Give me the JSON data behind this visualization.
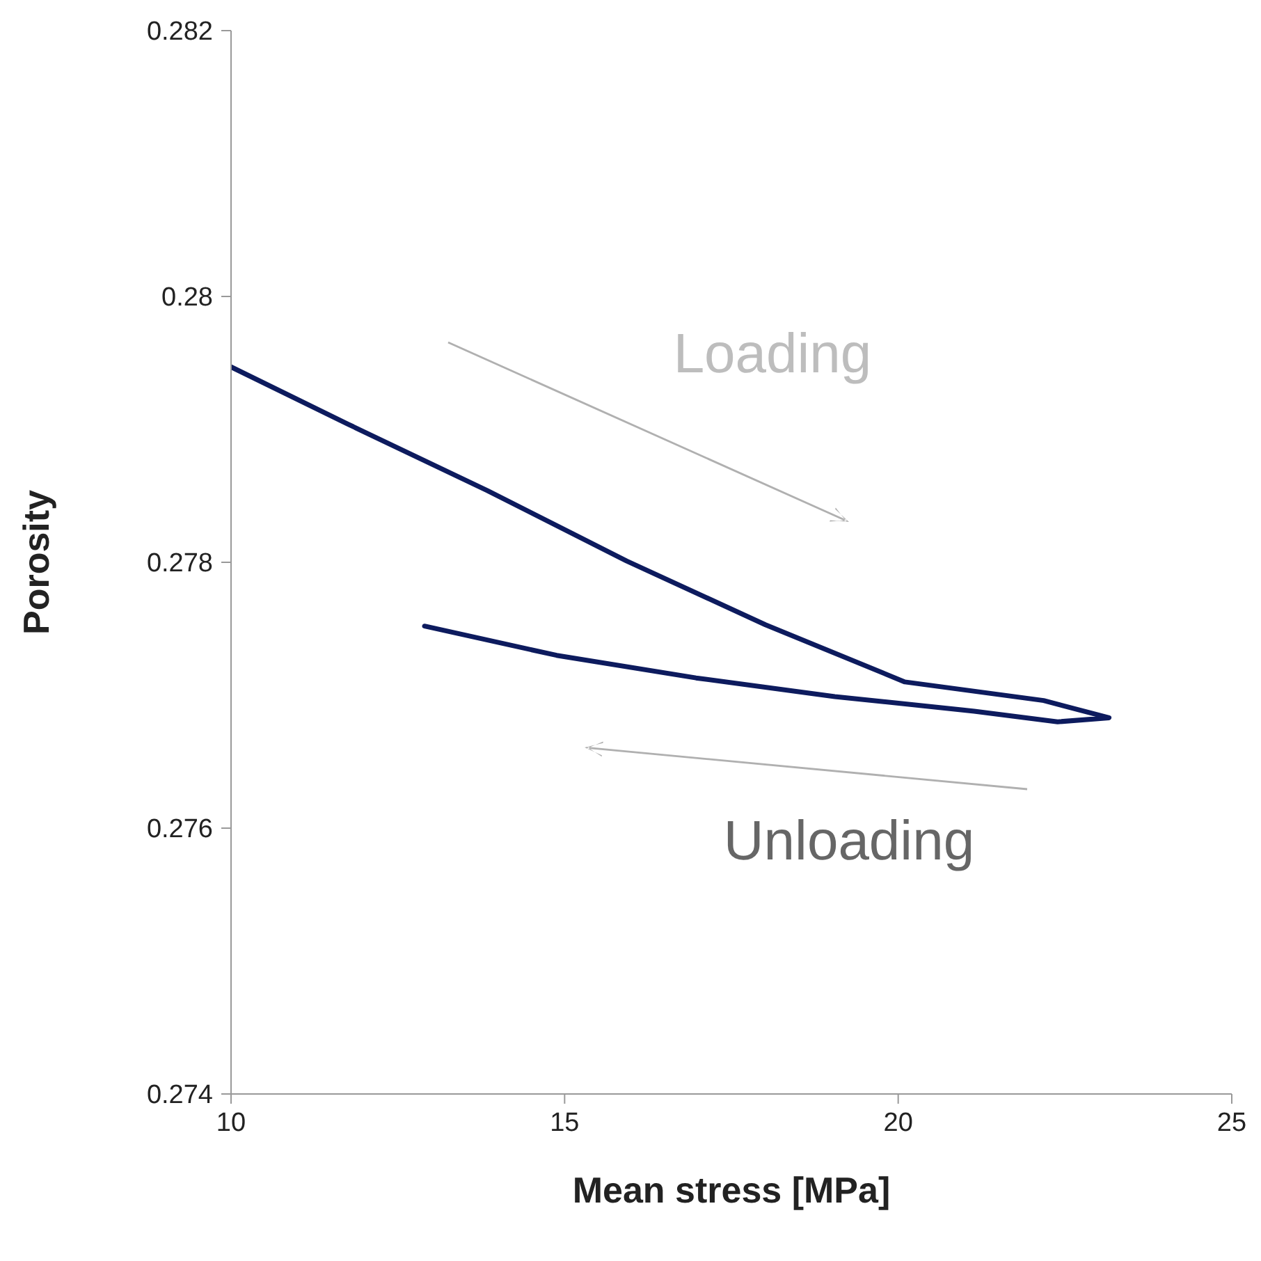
{
  "chart_data": {
    "type": "line",
    "xlabel": "Mean stress [MPa]",
    "ylabel": "Porosity",
    "xlim": [
      10,
      25
    ],
    "xticks": [
      10,
      15,
      20,
      25
    ],
    "ylim": [
      0.274,
      0.282
    ],
    "yticks": [
      0.274,
      0.276,
      0.278,
      0.28,
      0.282
    ],
    "line_style": "solid",
    "series": [
      {
        "color": "#0d1b5e",
        "x": [
          10,
          11.75,
          13.84,
          15.93,
          18.01,
          20.1,
          22.18,
          23.16,
          22.39,
          21.14,
          19.05,
          16.97,
          14.88,
          12.9
        ],
        "values": [
          0.27947,
          0.27904,
          0.27854,
          0.27801,
          0.27753,
          0.2771,
          0.27696,
          0.27683,
          0.2768,
          0.27688,
          0.27699,
          0.27713,
          0.2773,
          0.27752
        ]
      }
    ],
    "annotations": [
      "Loading",
      "Unloading"
    ]
  }
}
